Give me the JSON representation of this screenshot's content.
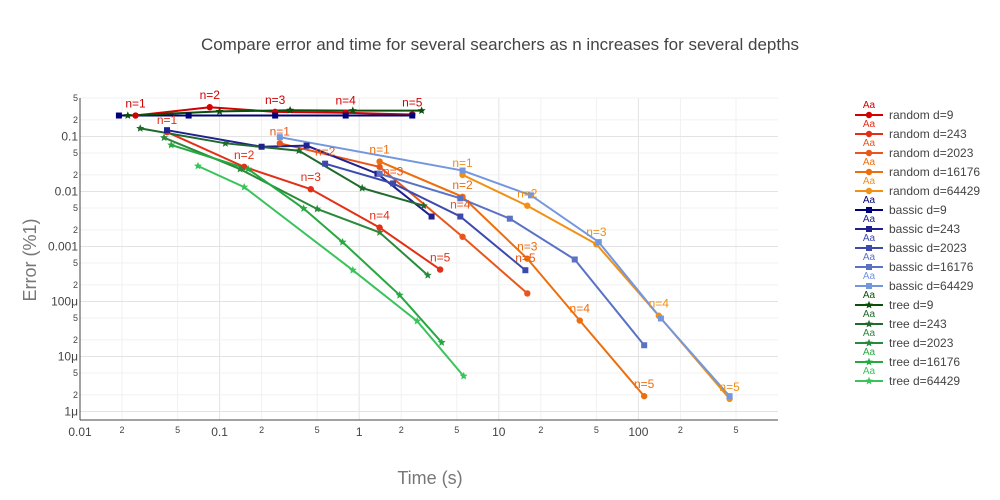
{
  "chart_data": {
    "type": "line",
    "title": "Compare error and time for several searchers as n increases for several depths",
    "xlabel": "Time (s)",
    "ylabel": "Error (%1)",
    "xscale": "log",
    "yscale": "log",
    "xlim": [
      0.01,
      1000
    ],
    "ylim": [
      7e-07,
      0.5
    ],
    "x_major_ticks": [
      {
        "value": 0.01,
        "label": "0.01"
      },
      {
        "value": 0.1,
        "label": "0.1"
      },
      {
        "value": 1,
        "label": "1"
      },
      {
        "value": 10,
        "label": "10"
      },
      {
        "value": 100,
        "label": "100"
      }
    ],
    "x_minor_ticks": [
      {
        "value": 0.02,
        "label": "2"
      },
      {
        "value": 0.05,
        "label": "5"
      },
      {
        "value": 0.2,
        "label": "2"
      },
      {
        "value": 0.5,
        "label": "5"
      },
      {
        "value": 2,
        "label": "2"
      },
      {
        "value": 5,
        "label": "5"
      },
      {
        "value": 20,
        "label": "2"
      },
      {
        "value": 50,
        "label": "5"
      },
      {
        "value": 200,
        "label": "2"
      },
      {
        "value": 500,
        "label": "5"
      }
    ],
    "y_major_ticks": [
      {
        "value": 0.1,
        "label": "0.1"
      },
      {
        "value": 0.01,
        "label": "0.01"
      },
      {
        "value": 0.001,
        "label": "0.001"
      },
      {
        "value": 0.0001,
        "label": "100μ"
      },
      {
        "value": 1e-05,
        "label": "10μ"
      },
      {
        "value": 1e-06,
        "label": "1μ"
      }
    ],
    "y_minor_ticks": [
      {
        "value": 0.5,
        "label": "5"
      },
      {
        "value": 0.2,
        "label": "2"
      },
      {
        "value": 0.05,
        "label": "5"
      },
      {
        "value": 0.02,
        "label": "2"
      },
      {
        "value": 0.005,
        "label": "5"
      },
      {
        "value": 0.002,
        "label": "2"
      },
      {
        "value": 0.0005,
        "label": "5"
      },
      {
        "value": 0.0002,
        "label": "2"
      },
      {
        "value": 5e-05,
        "label": "5"
      },
      {
        "value": 2e-05,
        "label": "2"
      },
      {
        "value": 5e-06,
        "label": "5"
      },
      {
        "value": 2e-06,
        "label": "2"
      }
    ],
    "grid": true,
    "legend_position": "right",
    "legend_marker_text": "Aa",
    "series": [
      {
        "name": "random d=9",
        "color": "#d40000",
        "marker": "circle",
        "points": [
          [
            0.025,
            0.24
          ],
          [
            0.085,
            0.34
          ],
          [
            0.25,
            0.28
          ],
          [
            0.8,
            0.27
          ],
          [
            2.4,
            0.25
          ]
        ],
        "labels": [
          "n=1",
          "n=2",
          "n=3",
          "n=4",
          "n=5"
        ]
      },
      {
        "name": "random d=243",
        "color": "#e32f17",
        "marker": "circle",
        "points": [
          [
            0.042,
            0.12
          ],
          [
            0.15,
            0.028
          ],
          [
            0.45,
            0.011
          ],
          [
            1.4,
            0.0022
          ],
          [
            3.8,
            0.00038
          ]
        ],
        "labels": [
          "n=1",
          "n=2",
          "n=3",
          "n=4",
          "n=5"
        ]
      },
      {
        "name": "random d=2023",
        "color": "#e8561b",
        "marker": "circle",
        "points": [
          [
            0.27,
            0.075
          ],
          [
            1.4,
            0.028
          ],
          [
            5.5,
            0.0015
          ],
          [
            16,
            0.00014
          ]
        ],
        "labels": []
      },
      {
        "name": "random d=16176",
        "color": "#ec6e0c",
        "marker": "circle",
        "points": [
          [
            1.4,
            0.035
          ],
          [
            5.5,
            0.008
          ],
          [
            16,
            0.0006
          ],
          [
            38,
            4.5e-05
          ],
          [
            110,
            1.9e-06
          ]
        ],
        "labels": []
      },
      {
        "name": "random d=64429",
        "color": "#f09015",
        "marker": "circle",
        "points": [
          [
            5.5,
            0.02
          ],
          [
            16,
            0.0055
          ],
          [
            50,
            0.0011
          ],
          [
            140,
            5.5e-05
          ],
          [
            450,
            1.7e-06
          ]
        ],
        "labels": []
      },
      {
        "name": "bassic d=9",
        "color": "#00007a",
        "marker": "square",
        "points": [
          [
            0.019,
            0.24
          ],
          [
            0.06,
            0.24
          ],
          [
            0.25,
            0.24
          ],
          [
            0.8,
            0.24
          ],
          [
            2.4,
            0.24
          ]
        ],
        "labels": []
      },
      {
        "name": "bassic d=243",
        "color": "#20208f",
        "marker": "square",
        "points": [
          [
            0.042,
            0.13
          ],
          [
            0.2,
            0.065
          ],
          [
            0.42,
            0.068
          ],
          [
            1.35,
            0.021
          ],
          [
            3.3,
            0.0035
          ]
        ],
        "labels": []
      },
      {
        "name": "bassic d=2023",
        "color": "#3c4aad",
        "marker": "square",
        "points": [
          [
            0.57,
            0.032
          ],
          [
            1.75,
            0.014
          ],
          [
            5.3,
            0.0035
          ],
          [
            15.5,
            0.00037
          ]
        ],
        "labels": []
      },
      {
        "name": "bassic d=16176",
        "color": "#5a72c6",
        "marker": "square",
        "points": [
          [
            1.4,
            0.021
          ],
          [
            5.3,
            0.0075
          ],
          [
            12,
            0.0032
          ],
          [
            35,
            0.00058
          ],
          [
            110,
            1.6e-05
          ]
        ],
        "labels": []
      },
      {
        "name": "bassic d=64429",
        "color": "#7397de",
        "marker": "square",
        "points": [
          [
            0.27,
            0.097
          ],
          [
            5.5,
            0.024
          ],
          [
            17,
            0.0085
          ],
          [
            52,
            0.0012
          ],
          [
            145,
            4.9e-05
          ],
          [
            450,
            1.9e-06
          ]
        ],
        "labels": [
          "n=1"
        ]
      },
      {
        "name": "tree d=9",
        "color": "#0b4f0b",
        "marker": "star",
        "points": [
          [
            0.022,
            0.24
          ],
          [
            0.1,
            0.285
          ],
          [
            0.32,
            0.3
          ],
          [
            0.9,
            0.295
          ],
          [
            2.8,
            0.295
          ]
        ],
        "labels": []
      },
      {
        "name": "tree d=243",
        "color": "#1f6a2c",
        "marker": "star",
        "points": [
          [
            0.027,
            0.14
          ],
          [
            0.11,
            0.075
          ],
          [
            0.37,
            0.055
          ],
          [
            1.05,
            0.0115
          ],
          [
            2.9,
            0.0055
          ]
        ],
        "labels": []
      },
      {
        "name": "tree d=2023",
        "color": "#2a8a3c",
        "marker": "star",
        "points": [
          [
            0.04,
            0.095
          ],
          [
            0.14,
            0.0255
          ],
          [
            0.5,
            0.0048
          ],
          [
            1.4,
            0.0018
          ],
          [
            3.1,
            0.0003
          ]
        ],
        "labels": []
      },
      {
        "name": "tree d=16176",
        "color": "#27a840",
        "marker": "star",
        "points": [
          [
            0.045,
            0.07
          ],
          [
            0.16,
            0.0255
          ],
          [
            0.4,
            0.0049
          ],
          [
            0.76,
            0.0012
          ],
          [
            1.95,
            0.00013
          ],
          [
            3.9,
            1.8e-05
          ]
        ],
        "labels": []
      },
      {
        "name": "tree d=64429",
        "color": "#3bc35b",
        "marker": "star",
        "points": [
          [
            0.07,
            0.029
          ],
          [
            0.15,
            0.012
          ],
          [
            0.9,
            0.00037
          ],
          [
            2.6,
            4.4e-05
          ],
          [
            5.6,
            4.4e-06
          ]
        ],
        "labels": []
      }
    ],
    "annotations": [
      {
        "text": "n=1",
        "x": 0.025,
        "y": 0.24,
        "color": "#d40000"
      },
      {
        "text": "n=2",
        "x": 0.085,
        "y": 0.34,
        "color": "#d40000"
      },
      {
        "text": "n=3",
        "x": 0.25,
        "y": 0.28,
        "color": "#d40000"
      },
      {
        "text": "n=4",
        "x": 0.8,
        "y": 0.27,
        "color": "#d40000"
      },
      {
        "text": "n=5",
        "x": 2.4,
        "y": 0.25,
        "color": "#d40000"
      },
      {
        "text": "n=1",
        "x": 0.042,
        "y": 0.12,
        "color": "#e32f17"
      },
      {
        "text": "n=2",
        "x": 0.15,
        "y": 0.028,
        "color": "#e32f17"
      },
      {
        "text": "n=3",
        "x": 0.45,
        "y": 0.011,
        "color": "#e32f17"
      },
      {
        "text": "n=4",
        "x": 1.4,
        "y": 0.0022,
        "color": "#e32f17"
      },
      {
        "text": "n=5",
        "x": 3.8,
        "y": 0.00038,
        "color": "#e32f17"
      },
      {
        "text": "n=1",
        "x": 0.27,
        "y": 0.075,
        "color": "#e8561b"
      },
      {
        "text": "n=2",
        "x": 0.57,
        "y": 0.032,
        "color": "#e8561b"
      },
      {
        "text": "n=3",
        "x": 1.75,
        "y": 0.014,
        "color": "#e8561b"
      },
      {
        "text": "n=4",
        "x": 5.3,
        "y": 0.0035,
        "color": "#e8561b"
      },
      {
        "text": "n=5",
        "x": 15.5,
        "y": 0.00037,
        "color": "#e8561b"
      },
      {
        "text": "n=1",
        "x": 1.4,
        "y": 0.035,
        "color": "#ec6e0c"
      },
      {
        "text": "n=2",
        "x": 5.5,
        "y": 0.008,
        "color": "#ec6e0c"
      },
      {
        "text": "n=3",
        "x": 16,
        "y": 0.0006,
        "color": "#ec6e0c"
      },
      {
        "text": "n=4",
        "x": 38,
        "y": 4.5e-05,
        "color": "#ec6e0c"
      },
      {
        "text": "n=5",
        "x": 110,
        "y": 1.9e-06,
        "color": "#ec6e0c"
      },
      {
        "text": "n=1",
        "x": 5.5,
        "y": 0.02,
        "color": "#f09015"
      },
      {
        "text": "n=2",
        "x": 16,
        "y": 0.0055,
        "color": "#f09015"
      },
      {
        "text": "n=3",
        "x": 50,
        "y": 0.0011,
        "color": "#f09015"
      },
      {
        "text": "n=4",
        "x": 140,
        "y": 5.5e-05,
        "color": "#f09015"
      },
      {
        "text": "n=5",
        "x": 450,
        "y": 1.7e-06,
        "color": "#f09015"
      }
    ]
  }
}
